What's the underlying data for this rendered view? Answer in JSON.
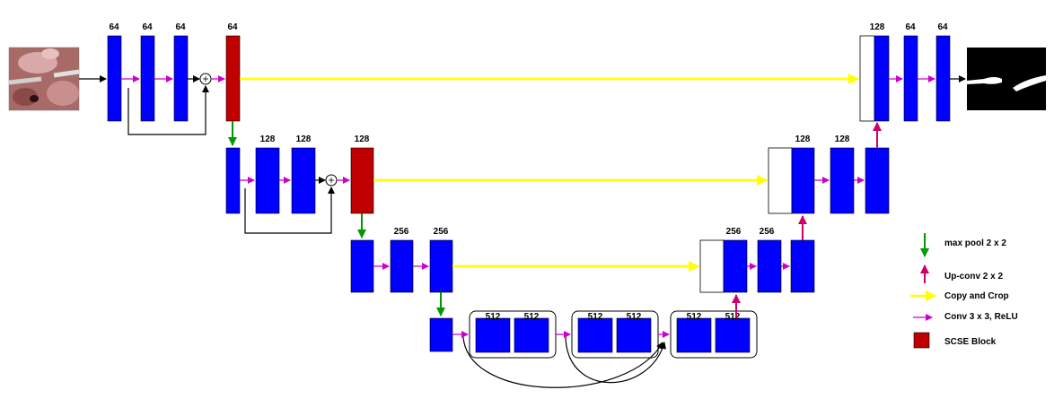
{
  "diagram": {
    "channel_labels": {
      "enc1_a": "64",
      "enc1_b": "64",
      "enc1_c": "64",
      "enc1_scse": "64",
      "enc2_a": "128",
      "enc2_b": "128",
      "enc2_scse": "128",
      "enc3_a": "256",
      "enc3_b": "256",
      "bott1_a": "512",
      "bott1_b": "512",
      "bott2_a": "512",
      "bott2_b": "512",
      "bott3_a": "512",
      "bott3_b": "512",
      "dec3_a": "256",
      "dec3_b": "256",
      "dec2_a": "128",
      "dec2_b": "128",
      "dec1_a": "128",
      "dec1_b": "64",
      "dec1_c": "64"
    },
    "colors": {
      "feature_map": "#0000ff",
      "scse_block": "#c00000",
      "max_pool_arrow": "#009900",
      "up_conv_arrow": "#cc0066",
      "copy_crop_arrow": "#ffff00",
      "conv_arrow": "#cc00cc",
      "residual_arrow": "#000000"
    }
  },
  "legend": {
    "max_pool": "max pool 2 x 2",
    "up_conv": "Up-conv 2 x 2",
    "copy_crop": "Copy and Crop",
    "conv": "Conv 3 x 3, ReLU",
    "scse": "SCSE Block"
  },
  "images": {
    "input": "surgical-scene-photo",
    "output": "binary-tool-segmentation-mask"
  }
}
